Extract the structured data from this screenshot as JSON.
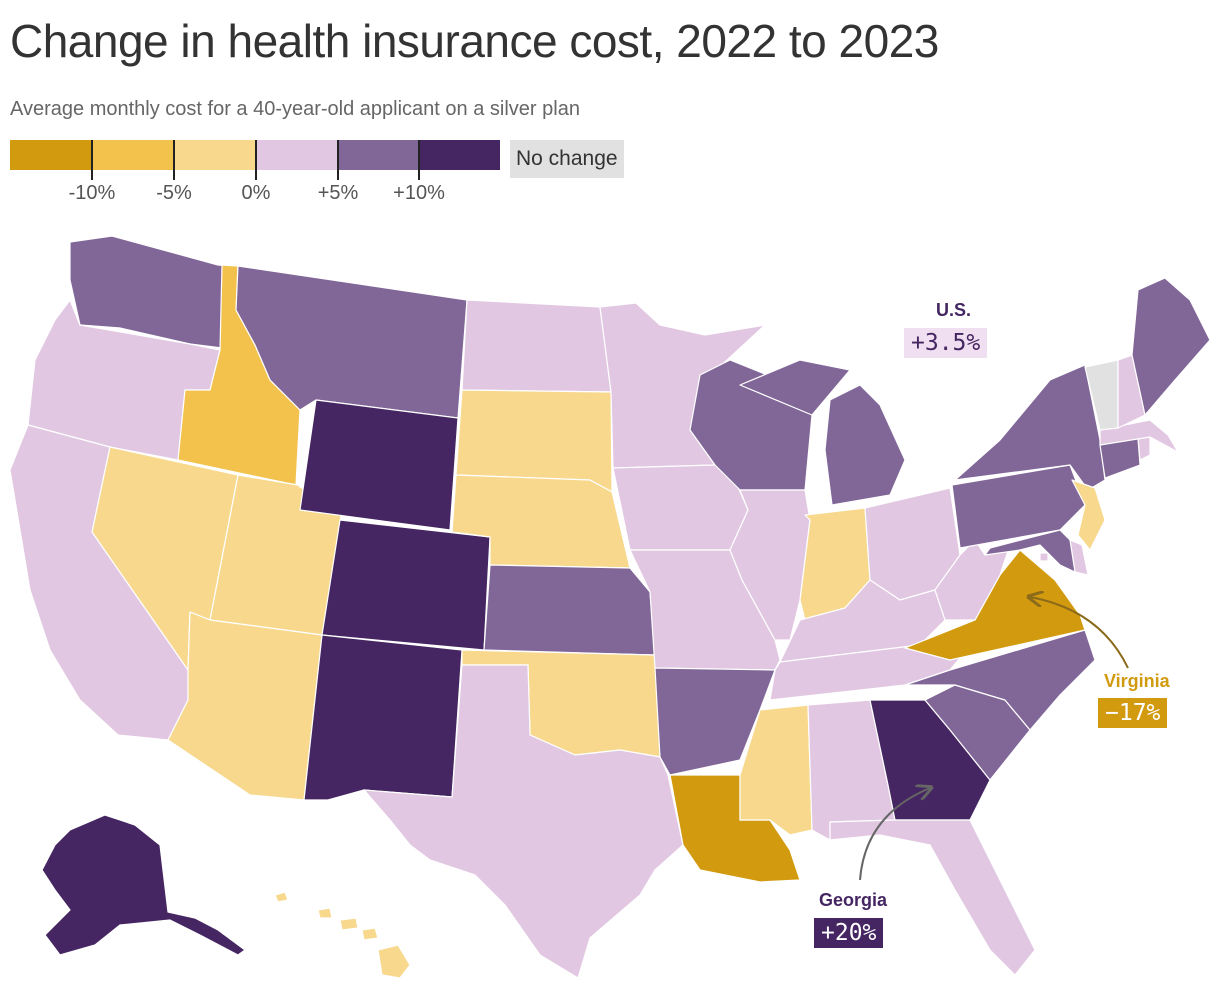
{
  "header": {
    "title": "Change in health insurance cost, 2022 to 2023",
    "subtitle": "Average monthly cost for a 40-year-old applicant on a silver plan"
  },
  "legend": {
    "colors": [
      "#d29a0f",
      "#f2c24d",
      "#f7d88d",
      "#e1c7e2",
      "#816698",
      "#452662"
    ],
    "ticks": [
      "-10%",
      "-5%",
      "0%",
      "+5%",
      "+10%"
    ],
    "no_change_label": "No change",
    "no_change_color": "#e1e1e1"
  },
  "bins": {
    "bin0": "#d29a0f",
    "bin1": "#f2c24d",
    "bin2": "#f7d88d",
    "bin3": "#e1c7e2",
    "bin4": "#816698",
    "bin5": "#452662",
    "none": "#e1e1e1"
  },
  "states": {
    "WA": "bin4",
    "OR": "bin3",
    "CA": "bin3",
    "ID": "bin1",
    "NV": "bin2",
    "UT": "bin2",
    "AZ": "bin2",
    "MT": "bin4",
    "WY": "bin5",
    "CO": "bin5",
    "NM": "bin5",
    "ND": "bin3",
    "SD": "bin2",
    "NE": "bin2",
    "KS": "bin4",
    "OK": "bin2",
    "TX": "bin3",
    "MN": "bin3",
    "IA": "bin3",
    "MO": "bin3",
    "AR": "bin4",
    "LA": "bin0",
    "WI": "bin4",
    "IL": "bin3",
    "MI": "bin4",
    "IN": "bin2",
    "OH": "bin3",
    "KY": "bin3",
    "TN": "bin3",
    "MS": "bin2",
    "AL": "bin3",
    "GA": "bin5",
    "FL": "bin3",
    "SC": "bin4",
    "NC": "bin4",
    "VA": "bin0",
    "WV": "bin3",
    "PA": "bin4",
    "NY": "bin4",
    "NJ": "bin2",
    "DE": "bin3",
    "MD": "bin4",
    "DC": "bin3",
    "CT": "bin4",
    "RI": "bin3",
    "MA": "bin3",
    "VT": "none",
    "NH": "bin3",
    "ME": "bin4",
    "AK": "bin5",
    "HI": "bin2"
  },
  "callouts": {
    "us": {
      "label": "U.S.",
      "value": "+3.5%",
      "label_color": "#452662",
      "box_bg": "#efdff0",
      "text_color": "#452662"
    },
    "virginia": {
      "label": "Virginia",
      "value": "−17%",
      "label_color": "#d29a0f",
      "box_bg": "#d29a0f",
      "text_color": "#ffffff"
    },
    "georgia": {
      "label": "Georgia",
      "value": "+20%",
      "label_color": "#452662",
      "box_bg": "#452662",
      "text_color": "#ffffff"
    }
  }
}
